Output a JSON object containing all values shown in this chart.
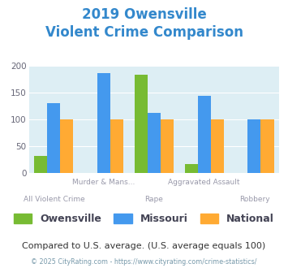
{
  "title_line1": "2019 Owensville",
  "title_line2": "Violent Crime Comparison",
  "title_color": "#3388cc",
  "categories": [
    "All Violent Crime",
    "Murder & Mans...",
    "Rape",
    "Aggravated Assault",
    "Robbery"
  ],
  "top_labels": [
    "",
    "Murder & Mans...",
    "",
    "Aggravated Assault",
    ""
  ],
  "bot_labels": [
    "All Violent Crime",
    "",
    "Rape",
    "",
    "Robbery"
  ],
  "owensville": [
    32,
    0,
    183,
    17,
    0
  ],
  "missouri": [
    130,
    186,
    112,
    143,
    100
  ],
  "national": [
    100,
    100,
    100,
    100,
    100
  ],
  "owensville_color": "#77bb33",
  "missouri_color": "#4499ee",
  "national_color": "#ffaa33",
  "ylim": [
    0,
    200
  ],
  "yticks": [
    0,
    50,
    100,
    150,
    200
  ],
  "background_color": "#ddeef4",
  "footer_text": "Compared to U.S. average. (U.S. average equals 100)",
  "footer_color": "#333333",
  "credit_text": "© 2025 CityRating.com - https://www.cityrating.com/crime-statistics/",
  "credit_color": "#7799aa",
  "label_color": "#9999aa"
}
